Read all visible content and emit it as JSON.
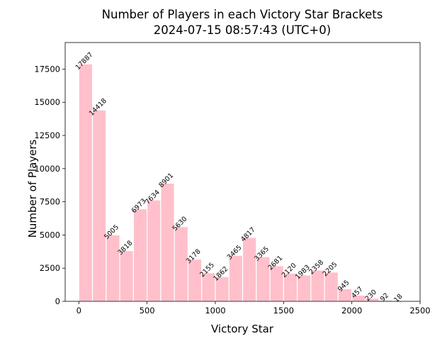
{
  "chart_data": {
    "type": "bar",
    "title": "Number of Players in each Victory Star Brackets",
    "subtitle": "2024-07-15 08:57:43 (UTC+0)",
    "xlabel": "Victory Star",
    "ylabel": "Number of Players",
    "bin_width": 100,
    "x_start": 0,
    "values": [
      17887,
      14418,
      5005,
      3818,
      6973,
      7634,
      8901,
      5630,
      3178,
      2155,
      1862,
      3465,
      4817,
      3365,
      2681,
      2120,
      1983,
      2358,
      2205,
      945,
      457,
      230,
      92,
      18
    ],
    "xlim": [
      -100,
      2500
    ],
    "ylim": [
      0,
      19500
    ],
    "xticks": [
      0,
      500,
      1000,
      1500,
      2000,
      2500
    ],
    "yticks": [
      0,
      2500,
      5000,
      7500,
      10000,
      12500,
      15000,
      17500
    ],
    "bar_color": "#ffc0cb",
    "bar_edge_color": "#ffffff",
    "grid": false,
    "legend": "none"
  }
}
